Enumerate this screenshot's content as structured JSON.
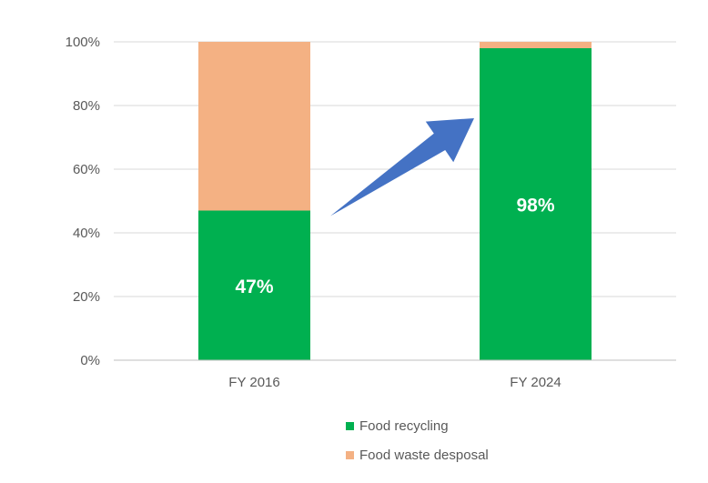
{
  "chart_data": {
    "type": "bar",
    "stacked": true,
    "categories": [
      "FY 2016",
      "FY 2024"
    ],
    "series": [
      {
        "name": "Food recycling",
        "values": [
          47,
          98
        ],
        "color": "#00B050",
        "data_labels": [
          "47%",
          "98%"
        ]
      },
      {
        "name": "Food waste desposal",
        "values": [
          53,
          2
        ],
        "color": "#F4B183"
      }
    ],
    "y_ticks": [
      "0%",
      "20%",
      "40%",
      "60%",
      "80%",
      "100%"
    ],
    "ylim": [
      0,
      100
    ],
    "grid": true,
    "legend_position": "bottom",
    "annotation": {
      "type": "arrow",
      "color": "#4472C4",
      "from_category": "FY 2016",
      "to_category": "FY 2024"
    }
  }
}
